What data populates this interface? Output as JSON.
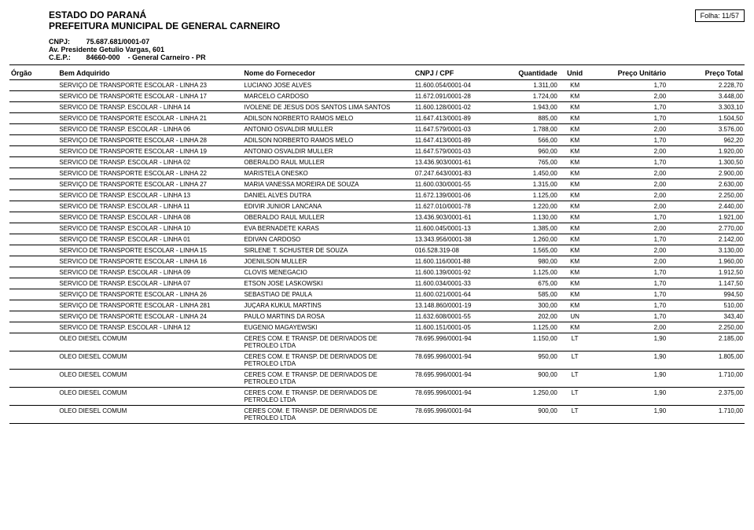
{
  "header": {
    "estado": "ESTADO DO PARANÁ",
    "prefeitura": "PREFEITURA MUNICIPAL DE GENERAL CARNEIRO",
    "folha_label": "Folha:",
    "folha_value": "11/57",
    "cnpj_label": "CNPJ:",
    "cnpj_value": "75.687.681/0001-07",
    "endereco": "Av. Presidente Getulio Vargas, 601",
    "cep_label": "C.E.P.:",
    "cep_value": "84660-000",
    "municipio": "- General Carneiro - PR"
  },
  "columns": {
    "orgao": "Órgão",
    "bem": "Bem Adquirido",
    "fornecedor": "Nome do Fornecedor",
    "cnpj": "CNPJ / CPF",
    "quantidade": "Quantidade",
    "unid": "Unid",
    "preco_unit": "Preço Unitário",
    "preco_total": "Preço Total"
  },
  "rows": [
    {
      "bem": "SERVIÇO DE TRANSPORTE ESCOLAR - LINHA 23",
      "forn": "LUCIANO JOSE ALVES",
      "cnpj": "11.600.054/0001-04",
      "qtd": "1.311,00",
      "unid": "KM",
      "pu": "1,70",
      "pt": "2.228,70"
    },
    {
      "bem": "SERVICO DE TRANSPORTE ESCOLAR - LINHA 17",
      "forn": "MARCELO CARDOSO",
      "cnpj": "11.672.091/0001-28",
      "qtd": "1.724,00",
      "unid": "KM",
      "pu": "2,00",
      "pt": "3.448,00"
    },
    {
      "bem": "SERVICO DE TRANSP. ESCOLAR - LINHA 14",
      "forn": "IVOLENE DE JESUS DOS SANTOS LIMA SANTOS",
      "cnpj": "11.600.128/0001-02",
      "qtd": "1.943,00",
      "unid": "KM",
      "pu": "1,70",
      "pt": "3.303,10"
    },
    {
      "bem": "SERVICO DE TRANSPORTE ESCOLAR - LINHA 21",
      "forn": "ADILSON NORBERTO RAMOS MELO",
      "cnpj": "11.647.413/0001-89",
      "qtd": "885,00",
      "unid": "KM",
      "pu": "1,70",
      "pt": "1.504,50"
    },
    {
      "bem": "SERVICO DE TRANSP. ESCOLAR - LINHA 06",
      "forn": "ANTONIO OSVALDIR MULLER",
      "cnpj": "11.647.579/0001-03",
      "qtd": "1.788,00",
      "unid": "KM",
      "pu": "2,00",
      "pt": "3.576,00"
    },
    {
      "bem": "SERVIÇO DE TRANSPORTE ESCOLAR - LINHA 28",
      "forn": "ADILSON NORBERTO RAMOS MELO",
      "cnpj": "11.647.413/0001-89",
      "qtd": "566,00",
      "unid": "KM",
      "pu": "1,70",
      "pt": "962,20"
    },
    {
      "bem": "SERVICO DE TRANSPORTE ESCOLAR - LINHA 19",
      "forn": "ANTONIO OSVALDIR MULLER",
      "cnpj": "11.647.579/0001-03",
      "qtd": "960,00",
      "unid": "KM",
      "pu": "2,00",
      "pt": "1.920,00"
    },
    {
      "bem": "SERVICO DE TRANSP. ESCOLAR - LINHA 02",
      "forn": "OBERALDO RAUL MULLER",
      "cnpj": "13.436.903/0001-61",
      "qtd": "765,00",
      "unid": "KM",
      "pu": "1,70",
      "pt": "1.300,50"
    },
    {
      "bem": "SERVICO DE TRANSPORTE ESCOLAR - LINHA 22",
      "forn": "MARISTELA ONESKO",
      "cnpj": "07.247.643/0001-83",
      "qtd": "1.450,00",
      "unid": "KM",
      "pu": "2,00",
      "pt": "2.900,00"
    },
    {
      "bem": "SERVIÇO DE TRANSPORTE ESCOLAR - LINHA 27",
      "forn": "MARIA VANESSA MOREIRA DE SOUZA",
      "cnpj": "11.600.030/0001-55",
      "qtd": "1.315,00",
      "unid": "KM",
      "pu": "2,00",
      "pt": "2.630,00"
    },
    {
      "bem": "SERVICO DE TRANSP. ESCOLAR - LINHA 13",
      "forn": "DANIEL ALVES DUTRA",
      "cnpj": "11.672.139/0001-06",
      "qtd": "1.125,00",
      "unid": "KM",
      "pu": "2,00",
      "pt": "2.250,00"
    },
    {
      "bem": "SERVICO DE TRANSP. ESCOLAR - LINHA 11",
      "forn": "EDIVIR JUNIOR LANCANA",
      "cnpj": "11.627.010/0001-78",
      "qtd": "1.220,00",
      "unid": "KM",
      "pu": "2,00",
      "pt": "2.440,00"
    },
    {
      "bem": "SERVICO DE TRANSP. ESCOLAR - LINHA 08",
      "forn": "OBERALDO RAUL MULLER",
      "cnpj": "13.436.903/0001-61",
      "qtd": "1.130,00",
      "unid": "KM",
      "pu": "1,70",
      "pt": "1.921,00"
    },
    {
      "bem": "SERVICO DE TRANSP. ESCOLAR - LINHA 10",
      "forn": "EVA BERNADETE KARAS",
      "cnpj": "11.600.045/0001-13",
      "qtd": "1.385,00",
      "unid": "KM",
      "pu": "2,00",
      "pt": "2.770,00"
    },
    {
      "bem": "SERVIÇO DE TRANSP. ESCOLAR - LINHA 01",
      "forn": "EDIVAN CARDOSO",
      "cnpj": "13.343.956/0001-38",
      "qtd": "1.260,00",
      "unid": "KM",
      "pu": "1,70",
      "pt": "2.142,00"
    },
    {
      "bem": "SERVICO DE TRANSPORTE ESCOLAR - LINHA 15",
      "forn": "SIRLENE T. SCHUSTER DE SOUZA",
      "cnpj": "016.528.319-08",
      "qtd": "1.565,00",
      "unid": "KM",
      "pu": "2,00",
      "pt": "3.130,00"
    },
    {
      "bem": "SERVICO DE TRANSPORTE ESCOLAR - LINHA 16",
      "forn": "JOENILSON MULLER",
      "cnpj": "11.600.116/0001-88",
      "qtd": "980,00",
      "unid": "KM",
      "pu": "2,00",
      "pt": "1.960,00"
    },
    {
      "bem": "SERVICO DE TRANSP. ESCOLAR - LINHA 09",
      "forn": "CLOVIS MENEGACIO",
      "cnpj": "11.600.139/0001-92",
      "qtd": "1.125,00",
      "unid": "KM",
      "pu": "1,70",
      "pt": "1.912,50"
    },
    {
      "bem": "SERVICO DE TRANSP. ESCOLAR - LINHA 07",
      "forn": "ETSON JOSE LASKOWSKI",
      "cnpj": "11.600.034/0001-33",
      "qtd": "675,00",
      "unid": "KM",
      "pu": "1,70",
      "pt": "1.147,50"
    },
    {
      "bem": "SERVIÇO DE TRANSPORTE ESCOLAR - LINHA 26",
      "forn": "SEBASTIAO DE PAULA",
      "cnpj": "11.600.021/0001-64",
      "qtd": "585,00",
      "unid": "KM",
      "pu": "1,70",
      "pt": "994,50"
    },
    {
      "bem": "SERVIÇO DE TRANSPORTE ESCOLAR - LINHA 281",
      "forn": "JUÇARA KUKUL MARTINS",
      "cnpj": "13.148.860/0001-19",
      "qtd": "300,00",
      "unid": "KM",
      "pu": "1,70",
      "pt": "510,00"
    },
    {
      "bem": "SERVIÇO DE TRANSPORTE ESCOLAR - LINHA 24",
      "forn": "PAULO MARTINS DA ROSA",
      "cnpj": "11.632.608/0001-55",
      "qtd": "202,00",
      "unid": "UN",
      "pu": "1,70",
      "pt": "343,40"
    },
    {
      "bem": "SERVICO DE TRANSP. ESCOLAR - LINHA 12",
      "forn": "EUGENIO MAGAYEWSKI",
      "cnpj": "11.600.151/0001-05",
      "qtd": "1.125,00",
      "unid": "KM",
      "pu": "2,00",
      "pt": "2.250,00"
    },
    {
      "bem": "OLEO DIESEL COMUM",
      "forn": "CERES COM. E TRANSP. DE DERIVADOS DE PETROLEO LTDA",
      "cnpj": "78.695.996/0001-94",
      "qtd": "1.150,00",
      "unid": "LT",
      "pu": "1,90",
      "pt": "2.185,00"
    },
    {
      "bem": "OLEO DIESEL COMUM",
      "forn": "CERES COM. E TRANSP. DE DERIVADOS DE PETROLEO LTDA",
      "cnpj": "78.695.996/0001-94",
      "qtd": "950,00",
      "unid": "LT",
      "pu": "1,90",
      "pt": "1.805,00"
    },
    {
      "bem": "OLEO DIESEL COMUM",
      "forn": "CERES COM. E TRANSP. DE DERIVADOS DE PETROLEO LTDA",
      "cnpj": "78.695.996/0001-94",
      "qtd": "900,00",
      "unid": "LT",
      "pu": "1,90",
      "pt": "1.710,00"
    },
    {
      "bem": "OLEO DIESEL COMUM",
      "forn": "CERES COM. E TRANSP. DE DERIVADOS DE PETROLEO LTDA",
      "cnpj": "78.695.996/0001-94",
      "qtd": "1.250,00",
      "unid": "LT",
      "pu": "1,90",
      "pt": "2.375,00"
    },
    {
      "bem": "OLEO DIESEL COMUM",
      "forn": "CERES COM. E TRANSP. DE DERIVADOS DE PETROLEO LTDA",
      "cnpj": "78.695.996/0001-94",
      "qtd": "900,00",
      "unid": "LT",
      "pu": "1,90",
      "pt": "1.710,00"
    }
  ]
}
